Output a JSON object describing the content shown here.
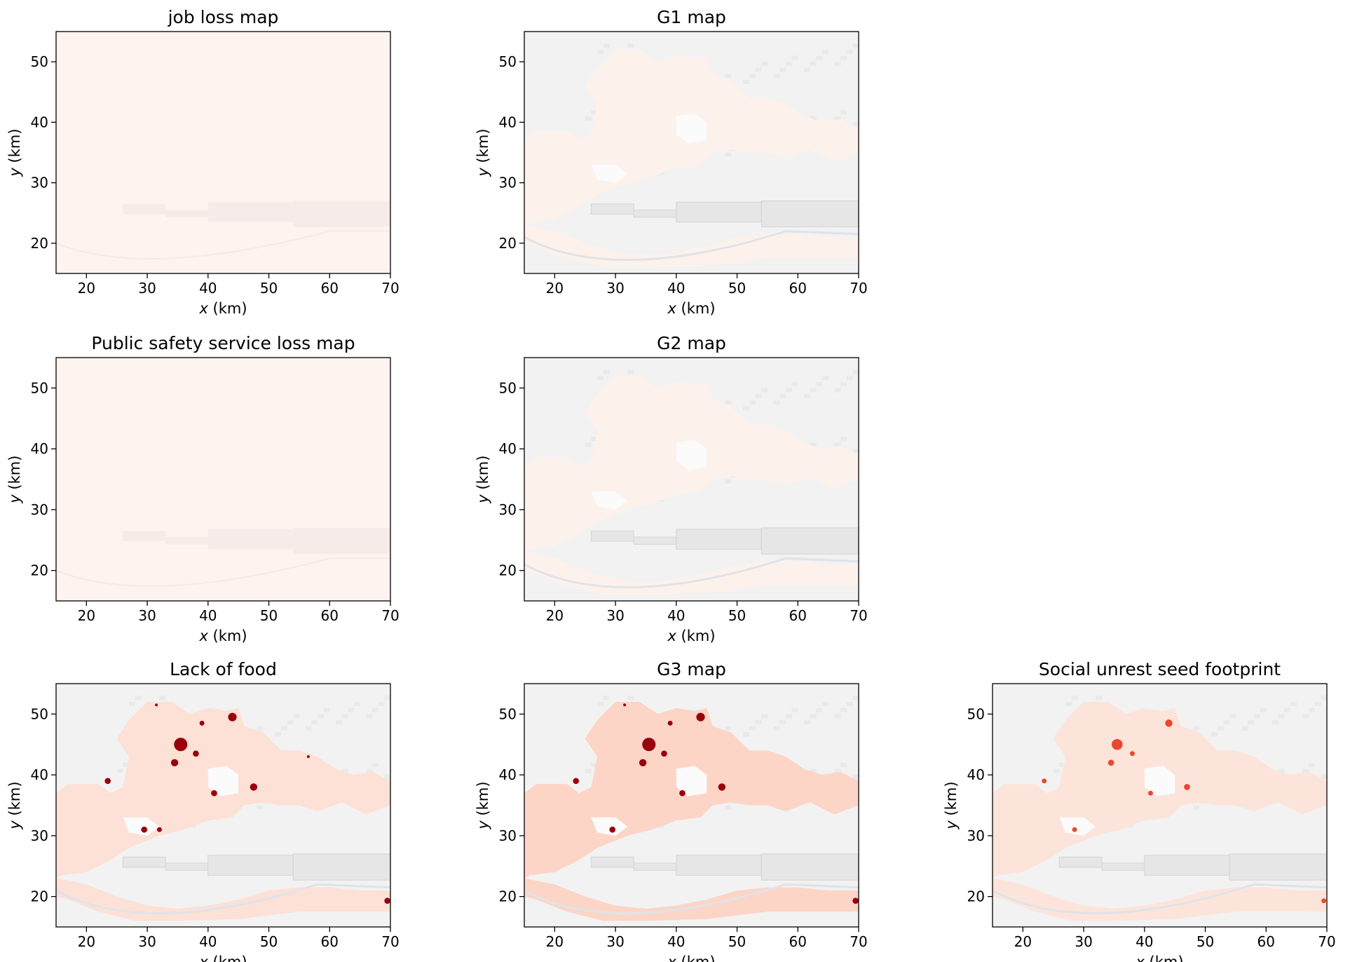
{
  "figure": {
    "background": "#ffffff",
    "colormap": "Reds",
    "basemap_color": "#f2f2f2",
    "road_color": "#e6e6e6"
  },
  "chart_data": [
    {
      "type": "heatmap",
      "title": "job loss map",
      "panel": "r0c0",
      "xlabel_var": "x",
      "xlabel_unit": " (km)",
      "ylabel_var": "y",
      "ylabel_unit": " (km)",
      "xlim": [
        15,
        70
      ],
      "ylim": [
        15,
        55
      ],
      "xticks": [
        20,
        30,
        40,
        50,
        60,
        70
      ],
      "yticks": [
        20,
        30,
        40,
        50
      ],
      "fill_color": "#fdf3ef",
      "show_basemap": false,
      "background_shading": "uniform",
      "hotspots": []
    },
    {
      "type": "heatmap",
      "title": "G1 map",
      "panel": "r0c1",
      "xlabel_var": "x",
      "xlabel_unit": " (km)",
      "ylabel_var": "y",
      "ylabel_unit": " (km)",
      "xlim": [
        15,
        70
      ],
      "ylim": [
        15,
        55
      ],
      "xticks": [
        20,
        30,
        40,
        50,
        60,
        70
      ],
      "yticks": [
        20,
        30,
        40,
        50
      ],
      "fill_color": "#fdf1ec",
      "show_basemap": true,
      "background_shading": "faint",
      "hotspots": []
    },
    {
      "type": "heatmap",
      "title": "Public safety service loss map",
      "panel": "r1c0",
      "xlabel_var": "x",
      "xlabel_unit": " (km)",
      "ylabel_var": "y",
      "ylabel_unit": " (km)",
      "xlim": [
        15,
        70
      ],
      "ylim": [
        15,
        55
      ],
      "xticks": [
        20,
        30,
        40,
        50,
        60,
        70
      ],
      "yticks": [
        20,
        30,
        40,
        50
      ],
      "fill_color": "#fdf3ef",
      "show_basemap": false,
      "background_shading": "uniform",
      "hotspots": []
    },
    {
      "type": "heatmap",
      "title": "G2 map",
      "panel": "r1c1",
      "xlabel_var": "x",
      "xlabel_unit": " (km)",
      "ylabel_var": "y",
      "ylabel_unit": " (km)",
      "xlim": [
        15,
        70
      ],
      "ylim": [
        15,
        55
      ],
      "xticks": [
        20,
        30,
        40,
        50,
        60,
        70
      ],
      "yticks": [
        20,
        30,
        40,
        50
      ],
      "fill_color": "#fdf1ec",
      "show_basemap": true,
      "background_shading": "faint",
      "hotspots": []
    },
    {
      "type": "heatmap",
      "title": "Lack of food",
      "panel": "r2c0",
      "xlabel_var": "x",
      "xlabel_unit": " (km)",
      "ylabel_var": "y",
      "ylabel_unit": " (km)",
      "xlim": [
        15,
        70
      ],
      "ylim": [
        15,
        55
      ],
      "xticks": [
        20,
        30,
        40,
        50,
        60,
        70
      ],
      "yticks": [
        20,
        30,
        40,
        50
      ],
      "fill_color": "#fde0d6",
      "show_basemap": true,
      "background_shading": "footprint",
      "hotspot_color": "#99000d",
      "hotspots": [
        {
          "x": 35.5,
          "y": 45.0,
          "r": 1.1
        },
        {
          "x": 34.5,
          "y": 42.0,
          "r": 0.6
        },
        {
          "x": 38.0,
          "y": 43.5,
          "r": 0.5
        },
        {
          "x": 39.0,
          "y": 48.5,
          "r": 0.4
        },
        {
          "x": 44.0,
          "y": 49.5,
          "r": 0.7
        },
        {
          "x": 41.0,
          "y": 37.0,
          "r": 0.5
        },
        {
          "x": 47.5,
          "y": 38.0,
          "r": 0.6
        },
        {
          "x": 23.5,
          "y": 39.0,
          "r": 0.5
        },
        {
          "x": 29.5,
          "y": 31.0,
          "r": 0.5
        },
        {
          "x": 32.0,
          "y": 31.0,
          "r": 0.4
        },
        {
          "x": 69.5,
          "y": 19.3,
          "r": 0.5
        },
        {
          "x": 31.5,
          "y": 51.5,
          "r": 0.2
        },
        {
          "x": 56.5,
          "y": 43.0,
          "r": 0.2
        }
      ]
    },
    {
      "type": "heatmap",
      "title": "G3 map",
      "panel": "r2c1",
      "xlabel_var": "x",
      "xlabel_unit": " (km)",
      "ylabel_var": "y",
      "ylabel_unit": " (km)",
      "xlim": [
        15,
        70
      ],
      "ylim": [
        15,
        55
      ],
      "xticks": [
        20,
        30,
        40,
        50,
        60,
        70
      ],
      "yticks": [
        20,
        30,
        40,
        50
      ],
      "fill_color": "#fcd5c7",
      "show_basemap": true,
      "background_shading": "footprint",
      "hotspot_color": "#99000d",
      "hotspots": [
        {
          "x": 35.5,
          "y": 45.0,
          "r": 1.1
        },
        {
          "x": 34.5,
          "y": 42.0,
          "r": 0.6
        },
        {
          "x": 38.0,
          "y": 43.5,
          "r": 0.5
        },
        {
          "x": 39.0,
          "y": 48.5,
          "r": 0.4
        },
        {
          "x": 44.0,
          "y": 49.5,
          "r": 0.7
        },
        {
          "x": 41.0,
          "y": 37.0,
          "r": 0.5
        },
        {
          "x": 47.5,
          "y": 38.0,
          "r": 0.6
        },
        {
          "x": 23.5,
          "y": 39.0,
          "r": 0.5
        },
        {
          "x": 29.5,
          "y": 31.0,
          "r": 0.5
        },
        {
          "x": 69.5,
          "y": 19.3,
          "r": 0.5
        },
        {
          "x": 31.5,
          "y": 51.5,
          "r": 0.2
        }
      ]
    },
    {
      "type": "heatmap",
      "title": "Social unrest seed footprint",
      "panel": "r2c2",
      "xlabel_var": "x",
      "xlabel_unit": " (km)",
      "ylabel_var": "y",
      "ylabel_unit": " (km)",
      "xlim": [
        15,
        70
      ],
      "ylim": [
        15,
        55
      ],
      "xticks": [
        20,
        30,
        40,
        50,
        60,
        70
      ],
      "yticks": [
        20,
        30,
        40,
        50
      ],
      "fill_color": "#fde4da",
      "show_basemap": true,
      "background_shading": "footprint",
      "hotspot_color": "#e8482f",
      "hotspots": [
        {
          "x": 35.5,
          "y": 45.0,
          "r": 0.9
        },
        {
          "x": 34.5,
          "y": 42.0,
          "r": 0.5
        },
        {
          "x": 38.0,
          "y": 43.5,
          "r": 0.4
        },
        {
          "x": 44.0,
          "y": 48.5,
          "r": 0.6
        },
        {
          "x": 41.0,
          "y": 37.0,
          "r": 0.4
        },
        {
          "x": 47.0,
          "y": 38.0,
          "r": 0.5
        },
        {
          "x": 23.5,
          "y": 39.0,
          "r": 0.4
        },
        {
          "x": 28.5,
          "y": 31.0,
          "r": 0.4
        },
        {
          "x": 69.5,
          "y": 19.3,
          "r": 0.4
        }
      ]
    }
  ]
}
